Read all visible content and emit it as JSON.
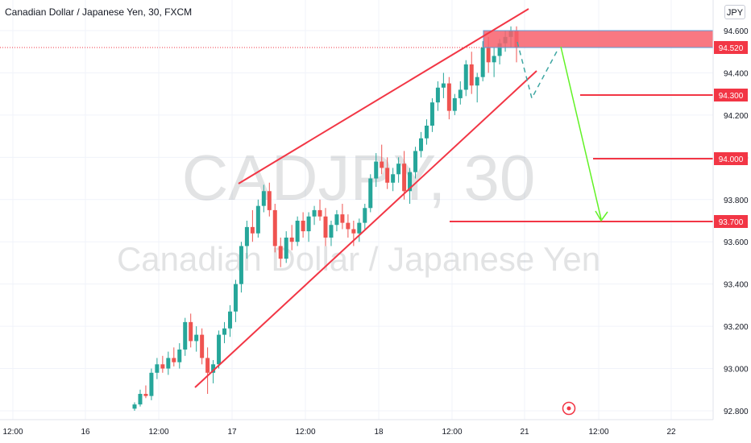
{
  "header": {
    "title": "Canadian Dollar / Japanese Yen, 30, FXCM",
    "currency_button": "JPY"
  },
  "watermark": {
    "symbol": "CADJPY, 30",
    "name": "Canadian Dollar / Japanese Yen"
  },
  "colors": {
    "up": "#26a69a",
    "down": "#ef5350",
    "annotation": "#f23645",
    "arrow": "#61f225",
    "zone": "#f7606c",
    "dash": "#3fa7a3"
  },
  "chart_data": {
    "type": "candlestick",
    "x_ticks": [
      "12:00",
      "16",
      "12:00",
      "17",
      "12:00",
      "18",
      "12:00",
      "21",
      "12:00",
      "22"
    ],
    "y_ticks": [
      "94.600",
      "94.400",
      "94.200",
      "94.000",
      "93.800",
      "93.600",
      "93.400",
      "93.200",
      "93.000",
      "92.800"
    ],
    "ylim": [
      92.78,
      94.7
    ],
    "current_price": "94.520",
    "level_labels": [
      "94.300",
      "94.000",
      "93.700"
    ],
    "series": [
      {
        "candles": [
          [
            92.81,
            92.84,
            92.8,
            92.83
          ],
          [
            92.83,
            92.9,
            92.82,
            92.88
          ],
          [
            92.88,
            92.92,
            92.86,
            92.87
          ],
          [
            92.87,
            93.0,
            92.85,
            92.98
          ],
          [
            92.98,
            93.05,
            92.95,
            93.02
          ],
          [
            93.02,
            93.06,
            92.98,
            93.0
          ],
          [
            93.0,
            93.08,
            92.97,
            93.05
          ],
          [
            93.05,
            93.1,
            93.01,
            93.03
          ],
          [
            93.03,
            93.12,
            93.0,
            93.09
          ],
          [
            93.09,
            93.24,
            93.06,
            93.22
          ],
          [
            93.22,
            93.26,
            93.1,
            93.13
          ],
          [
            93.13,
            93.2,
            93.08,
            93.16
          ],
          [
            93.16,
            93.19,
            93.02,
            93.05
          ],
          [
            93.05,
            93.1,
            92.88,
            92.98
          ],
          [
            92.98,
            93.04,
            92.93,
            93.02
          ],
          [
            93.02,
            93.18,
            93.0,
            93.16
          ],
          [
            93.16,
            93.22,
            93.12,
            93.19
          ],
          [
            93.19,
            93.3,
            93.15,
            93.27
          ],
          [
            93.27,
            93.42,
            93.22,
            93.4
          ],
          [
            93.4,
            93.6,
            93.36,
            93.58
          ],
          [
            93.58,
            93.7,
            93.52,
            93.67
          ],
          [
            93.67,
            93.75,
            93.6,
            93.64
          ],
          [
            93.64,
            93.8,
            93.62,
            93.77
          ],
          [
            93.77,
            93.87,
            93.74,
            93.84
          ],
          [
            93.84,
            93.88,
            93.72,
            93.75
          ],
          [
            93.75,
            93.78,
            93.55,
            93.58
          ],
          [
            93.58,
            93.62,
            93.48,
            93.52
          ],
          [
            93.52,
            93.65,
            93.5,
            93.62
          ],
          [
            93.62,
            93.68,
            93.56,
            93.6
          ],
          [
            93.6,
            93.72,
            93.58,
            93.7
          ],
          [
            93.7,
            93.74,
            93.62,
            93.65
          ],
          [
            93.65,
            93.74,
            93.6,
            93.72
          ],
          [
            93.72,
            93.77,
            93.68,
            93.75
          ],
          [
            93.75,
            93.8,
            93.7,
            93.72
          ],
          [
            93.72,
            93.76,
            93.58,
            93.62
          ],
          [
            93.62,
            93.7,
            93.58,
            93.68
          ],
          [
            93.68,
            93.75,
            93.65,
            93.73
          ],
          [
            93.73,
            93.78,
            93.66,
            93.69
          ],
          [
            93.69,
            93.73,
            93.62,
            93.66
          ],
          [
            93.66,
            93.7,
            93.58,
            93.64
          ],
          [
            93.64,
            93.71,
            93.6,
            93.69
          ],
          [
            93.69,
            93.78,
            93.66,
            93.76
          ],
          [
            93.76,
            93.92,
            93.74,
            93.9
          ],
          [
            93.9,
            94.02,
            93.86,
            93.98
          ],
          [
            93.98,
            94.06,
            93.92,
            93.95
          ],
          [
            93.95,
            94.0,
            93.85,
            93.88
          ],
          [
            93.88,
            93.95,
            93.84,
            93.92
          ],
          [
            93.92,
            94.0,
            93.88,
            93.97
          ],
          [
            93.97,
            94.03,
            93.8,
            93.84
          ],
          [
            93.84,
            93.95,
            93.78,
            93.93
          ],
          [
            93.93,
            94.05,
            93.9,
            94.03
          ],
          [
            94.03,
            94.12,
            94.0,
            94.09
          ],
          [
            94.09,
            94.18,
            94.06,
            94.15
          ],
          [
            94.15,
            94.28,
            94.12,
            94.26
          ],
          [
            94.26,
            94.36,
            94.22,
            94.33
          ],
          [
            94.33,
            94.4,
            94.28,
            94.35
          ],
          [
            94.35,
            94.38,
            94.18,
            94.22
          ],
          [
            94.22,
            94.3,
            94.2,
            94.28
          ],
          [
            94.28,
            94.36,
            94.25,
            94.32
          ],
          [
            94.32,
            94.46,
            94.29,
            94.44
          ],
          [
            94.44,
            94.5,
            94.3,
            94.34
          ],
          [
            94.34,
            94.4,
            94.26,
            94.38
          ],
          [
            94.38,
            94.55,
            94.36,
            94.52
          ],
          [
            94.52,
            94.57,
            94.4,
            94.45
          ],
          [
            94.45,
            94.52,
            94.38,
            94.48
          ],
          [
            94.48,
            94.56,
            94.44,
            94.54
          ],
          [
            94.54,
            94.6,
            94.5,
            94.57
          ],
          [
            94.57,
            94.62,
            94.52,
            94.6
          ],
          [
            94.6,
            94.62,
            94.45,
            94.52
          ]
        ]
      }
    ]
  }
}
